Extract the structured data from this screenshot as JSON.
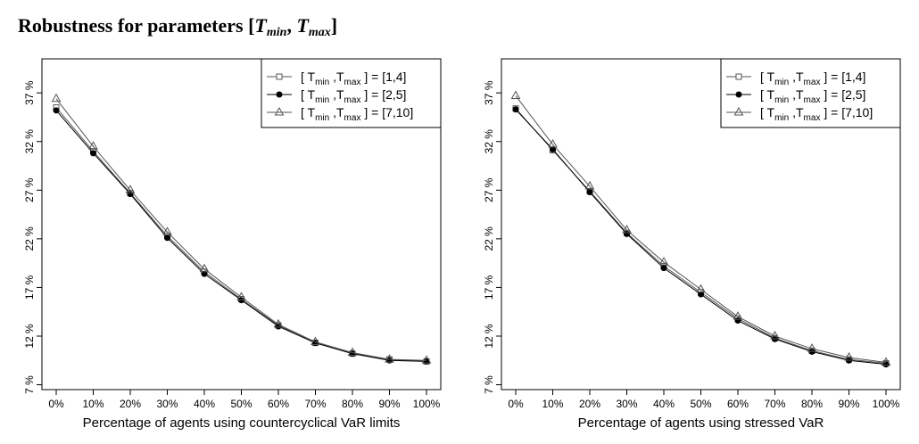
{
  "figure": {
    "title_prefix": "Robustness for parameters [",
    "title_T1": "T",
    "title_min": "min",
    "title_sep": ", ",
    "title_T2": "T",
    "title_max": "max",
    "title_suffix": "]"
  },
  "chart_data": [
    {
      "type": "line",
      "title": "",
      "xlabel": "Percentage of agents using countercyclical VaR limits",
      "ylabel": "",
      "categories": [
        "0%",
        "10%",
        "20%",
        "30%",
        "40%",
        "50%",
        "60%",
        "70%",
        "80%",
        "90%",
        "100%"
      ],
      "y_ticks": [
        7,
        12,
        17,
        22,
        27,
        32,
        37
      ],
      "y_tick_labels": [
        "7 %",
        "12 %",
        "17 %",
        "22 %",
        "27 %",
        "32 %",
        "37 %"
      ],
      "ylim": [
        6.5,
        40.5
      ],
      "grid": false,
      "legend_position": "top-right",
      "series": [
        {
          "name": "[ T_min , T_max ] = [1,4]",
          "label_parts": [
            "[ T",
            "min",
            " ,T",
            "max",
            " ] = [1,4]"
          ],
          "marker": "square-open",
          "color": "#555555",
          "values": [
            35.5,
            31.0,
            26.7,
            22.3,
            18.6,
            15.8,
            13.1,
            11.3,
            10.2,
            9.6,
            9.4
          ]
        },
        {
          "name": "[ T_min , T_max ] = [2,5]",
          "label_parts": [
            "[ T",
            "min",
            " ,T",
            "max",
            " ] = [2,5]"
          ],
          "marker": "circle-filled",
          "color": "#000000",
          "values": [
            35.2,
            30.8,
            26.6,
            22.1,
            18.4,
            15.7,
            13.0,
            11.3,
            10.2,
            9.5,
            9.4
          ]
        },
        {
          "name": "[ T_min , T_max ] = [7,10]",
          "label_parts": [
            "[ T",
            "min",
            " ,T",
            "max",
            " ] = [7,10]"
          ],
          "marker": "triangle-open",
          "color": "#555555",
          "values": [
            36.4,
            31.5,
            27.0,
            22.7,
            18.9,
            16.0,
            13.2,
            11.4,
            10.3,
            9.6,
            9.5
          ]
        }
      ]
    },
    {
      "type": "line",
      "title": "",
      "xlabel": "Percentage of agents using stressed VaR",
      "ylabel": "",
      "categories": [
        "0%",
        "10%",
        "20%",
        "30%",
        "40%",
        "50%",
        "60%",
        "70%",
        "80%",
        "90%",
        "100%"
      ],
      "y_ticks": [
        7,
        12,
        17,
        22,
        27,
        32,
        37
      ],
      "y_tick_labels": [
        "7 %",
        "12 %",
        "17 %",
        "22 %",
        "27 %",
        "32 %",
        "37 %"
      ],
      "ylim": [
        6.5,
        40.5
      ],
      "grid": false,
      "legend_position": "top-right",
      "series": [
        {
          "name": "[ T_min , T_max ] = [1,4]",
          "label_parts": [
            "[ T",
            "min",
            " ,T",
            "max",
            " ] = [1,4]"
          ],
          "marker": "square-open",
          "color": "#555555",
          "values": [
            35.4,
            31.1,
            26.9,
            22.6,
            19.2,
            16.5,
            13.8,
            11.8,
            10.5,
            9.6,
            9.2
          ]
        },
        {
          "name": "[ T_min , T_max ] = [2,5]",
          "label_parts": [
            "[ T",
            "min",
            " ,T",
            "max",
            " ] = [2,5]"
          ],
          "marker": "circle-filled",
          "color": "#000000",
          "values": [
            35.3,
            31.2,
            26.8,
            22.5,
            19.0,
            16.3,
            13.6,
            11.7,
            10.4,
            9.5,
            9.1
          ]
        },
        {
          "name": "[ T_min , T_max ] = [7,10]",
          "label_parts": [
            "[ T",
            "min",
            " ,T",
            "max",
            " ] = [7,10]"
          ],
          "marker": "triangle-open",
          "color": "#555555",
          "values": [
            36.7,
            31.7,
            27.4,
            22.9,
            19.6,
            16.8,
            14.0,
            12.0,
            10.7,
            9.8,
            9.3
          ]
        }
      ]
    }
  ]
}
